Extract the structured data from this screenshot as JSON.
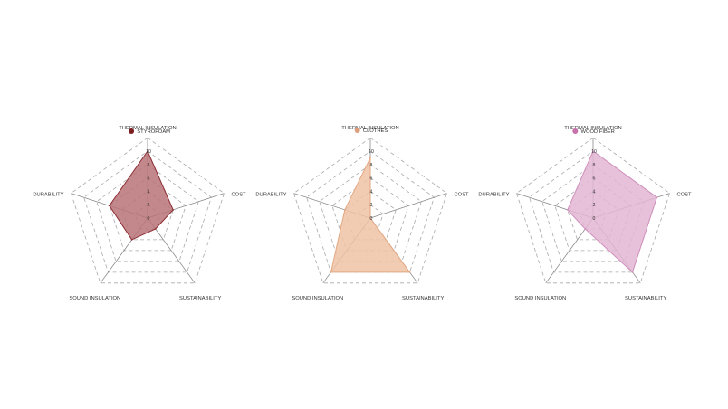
{
  "chart_data": [
    {
      "type": "radar",
      "series": [
        {
          "name": "STYROFOAM",
          "values": [
            10,
            4,
            2,
            4,
            6
          ]
        }
      ],
      "axes": [
        "THERMAL INSULATION",
        "COST",
        "SUSTAINABILITY",
        "SOUND INSULATION",
        "DURABILITY"
      ],
      "tick_labels": [
        "10",
        "8",
        "6",
        "4",
        "2",
        "0"
      ],
      "rlim": [
        0,
        10
      ],
      "grid": true,
      "legend_position": "top",
      "colors": {
        "fill": "#b87377",
        "stroke": "#8c2e34",
        "legend": "#7a1e22"
      }
    },
    {
      "type": "radar",
      "series": [
        {
          "name": "CLOTHES",
          "values": [
            9,
            0,
            10,
            10,
            4
          ]
        }
      ],
      "axes": [
        "THERMAL INSULATION",
        "COST",
        "SUSTAINABILITY",
        "SOUND INSULATION",
        "DURABILITY"
      ],
      "tick_labels": [
        "10",
        "8",
        "6",
        "4",
        "2",
        "0"
      ],
      "rlim": [
        0,
        10
      ],
      "grid": true,
      "legend_position": "top",
      "colors": {
        "fill": "#eec3a6",
        "stroke": "#e3a882",
        "legend": "#dd9e7e"
      }
    },
    {
      "type": "radar",
      "series": [
        {
          "name": "WOOD FIBER",
          "values": [
            10,
            10,
            10,
            2,
            4
          ]
        }
      ],
      "axes": [
        "THERMAL INSULATION",
        "COST",
        "SUSTAINABILITY",
        "SOUND INSULATION",
        "DURABILITY"
      ],
      "tick_labels": [
        "10",
        "8",
        "6",
        "4",
        "2",
        "0"
      ],
      "rlim": [
        0,
        10
      ],
      "grid": true,
      "legend_position": "top",
      "colors": {
        "fill": "#e3b6d3",
        "stroke": "#cf8fbb",
        "legend": "#c771aa"
      }
    }
  ]
}
